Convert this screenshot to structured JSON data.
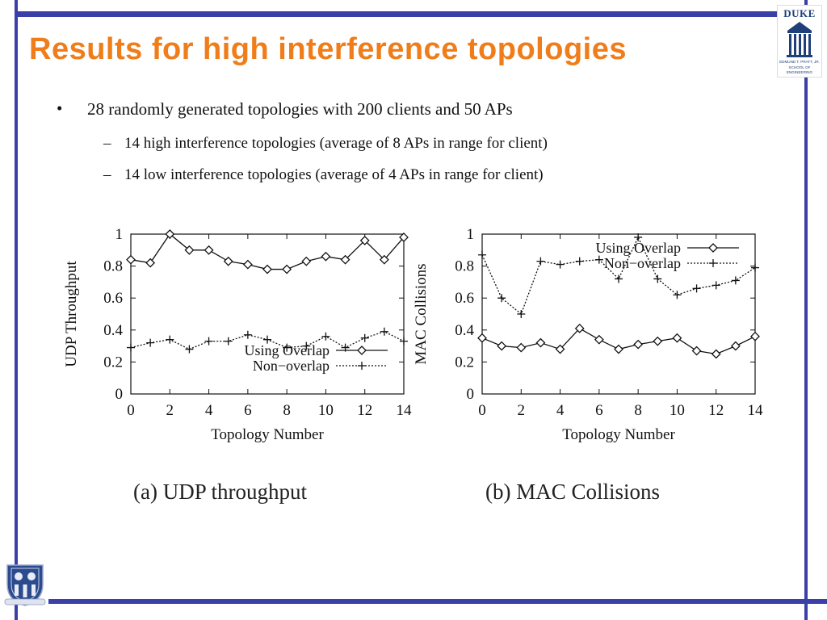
{
  "slide": {
    "title": "Results for high interference topologies",
    "bullets": [
      "28 randomly generated topologies with 200 clients and 50 APs"
    ],
    "sub_bullets": [
      "14 high interference topologies (average of 8 APs in range for client)",
      "14 low interference topologies (average of 4 APs in range for client)"
    ],
    "bullet_marker": "•",
    "sub_marker": "–",
    "logo": {
      "name": "DUKE",
      "line1": "EDMUND T. PRATT, JR.",
      "line2": "SCHOOL OF",
      "line3": "ENGINEERING"
    },
    "colors": {
      "frame": "#3b3fa8",
      "title": "#ef7d1a",
      "logo_blue": "#1f3f7a"
    }
  },
  "chart_data": [
    {
      "type": "line",
      "caption": "(a) UDP throughput",
      "xlabel": "Topology Number",
      "ylabel": "UDP Throughput",
      "xlim": [
        0,
        14
      ],
      "ylim": [
        0,
        1
      ],
      "xticks": [
        0,
        2,
        4,
        6,
        8,
        10,
        12,
        14
      ],
      "yticks": [
        0,
        0.2,
        0.4,
        0.6,
        0.8,
        1
      ],
      "ytick_labels": [
        "0",
        "0.2",
        "0.4",
        "0.6",
        "0.8",
        "1"
      ],
      "legend_position": "bottom-right",
      "x": [
        0,
        1,
        2,
        3,
        4,
        5,
        6,
        7,
        8,
        9,
        10,
        11,
        12,
        13,
        14
      ],
      "series": [
        {
          "name": "Using Overlap",
          "marker": "diamond",
          "dash": "solid",
          "values": [
            0.84,
            0.82,
            1.0,
            0.9,
            0.9,
            0.83,
            0.81,
            0.78,
            0.78,
            0.83,
            0.86,
            0.84,
            0.96,
            0.84,
            0.98
          ]
        },
        {
          "name": "Non−overlap",
          "marker": "plus",
          "dash": "dotted",
          "values": [
            0.29,
            0.32,
            0.34,
            0.28,
            0.33,
            0.33,
            0.37,
            0.34,
            0.29,
            0.3,
            0.36,
            0.29,
            0.35,
            0.39,
            0.33
          ]
        }
      ]
    },
    {
      "type": "line",
      "caption": "(b) MAC Collisions",
      "xlabel": "Topology Number",
      "ylabel": "MAC Collisions",
      "xlim": [
        0,
        14
      ],
      "ylim": [
        0,
        1
      ],
      "xticks": [
        0,
        2,
        4,
        6,
        8,
        10,
        12,
        14
      ],
      "yticks": [
        0,
        0.2,
        0.4,
        0.6,
        0.8,
        1
      ],
      "ytick_labels": [
        "0",
        "0.2",
        "0.4",
        "0.6",
        "0.8",
        "1"
      ],
      "legend_position": "top-right",
      "x": [
        0,
        1,
        2,
        3,
        4,
        5,
        6,
        7,
        8,
        9,
        10,
        11,
        12,
        13,
        14
      ],
      "series": [
        {
          "name": "Using Overlap",
          "marker": "diamond",
          "dash": "solid",
          "values": [
            0.35,
            0.3,
            0.29,
            0.32,
            0.28,
            0.41,
            0.34,
            0.28,
            0.31,
            0.33,
            0.35,
            0.27,
            0.25,
            0.3,
            0.36
          ]
        },
        {
          "name": "Non−overlap",
          "marker": "plus",
          "dash": "dotted",
          "values": [
            0.87,
            0.6,
            0.5,
            0.83,
            0.81,
            0.83,
            0.84,
            0.72,
            0.98,
            0.72,
            0.62,
            0.66,
            0.68,
            0.71,
            0.79
          ]
        }
      ]
    }
  ]
}
